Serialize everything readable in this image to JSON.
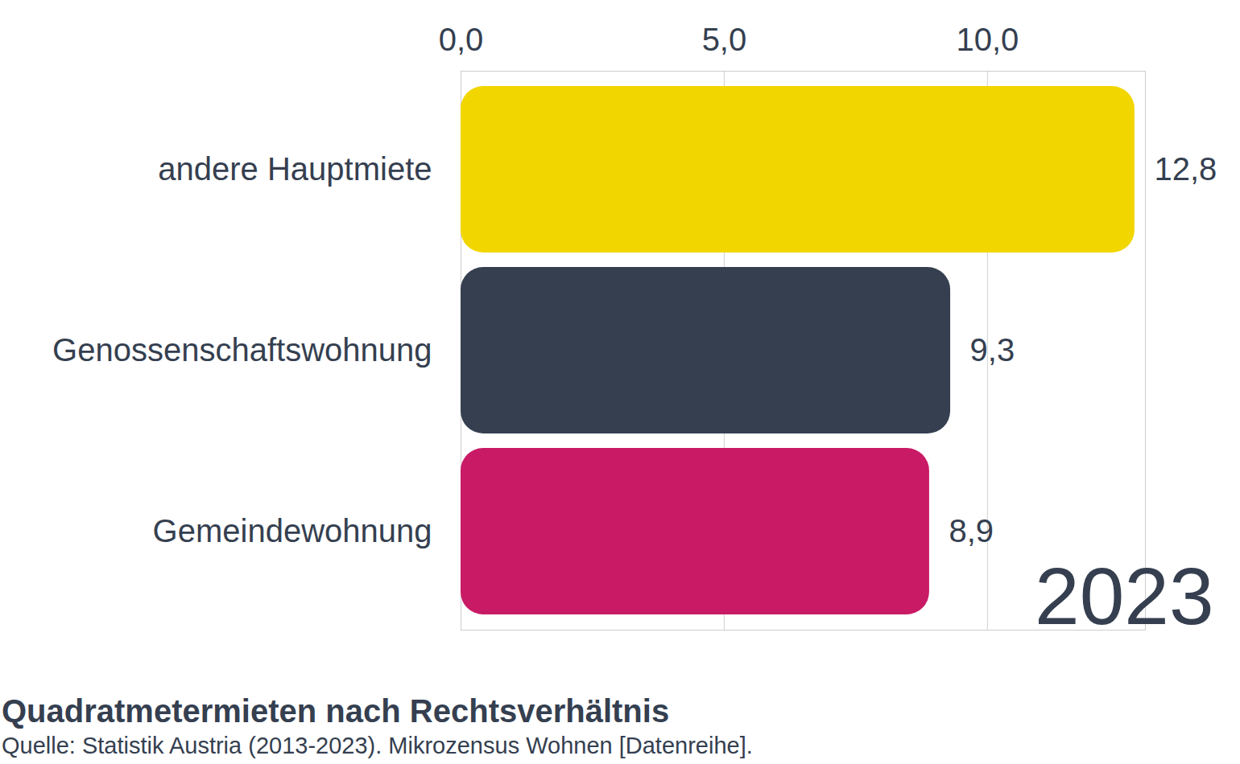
{
  "chart_data": {
    "type": "bar",
    "orientation": "horizontal",
    "title": "Quadratmetermieten nach Rechtsverhältnis",
    "caption": "Quelle: Statistik Austria (2013-2023). Mikrozensus Wohnen [Datenreihe].",
    "annotation": "2023",
    "categories": [
      "andere Hauptmiete",
      "Genossenschaftswohnung",
      "Gemeindewohnung"
    ],
    "values": [
      12.8,
      9.3,
      8.9
    ],
    "value_labels": [
      "12,8",
      "9,3",
      "8,9"
    ],
    "colors": [
      "#f2d600",
      "#353f50",
      "#c91a66"
    ],
    "xlim": [
      0,
      13
    ],
    "xticks": [
      {
        "value": 0,
        "label": "0,0"
      },
      {
        "value": 5,
        "label": "5,0"
      },
      {
        "value": 10,
        "label": "10,0"
      }
    ],
    "grid": true,
    "data_labels": true
  }
}
